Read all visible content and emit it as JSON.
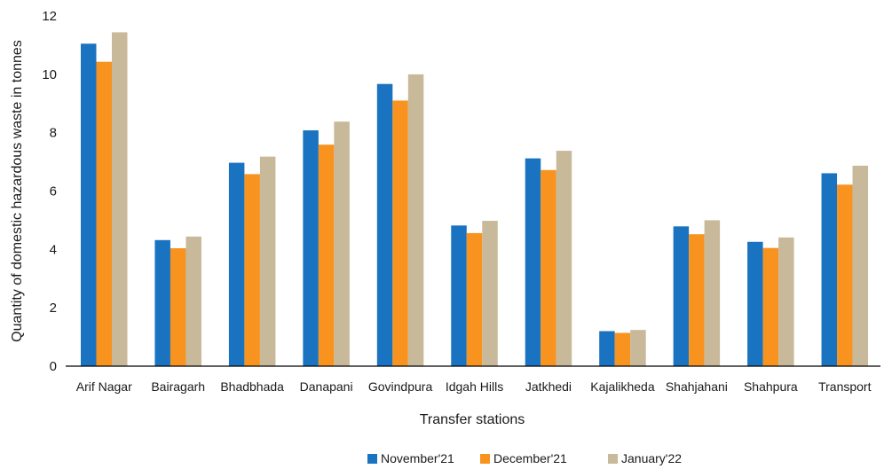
{
  "chart_data": {
    "type": "bar",
    "xlabel": "Transfer stations",
    "ylabel": "Quantity of domestic hazardous waste in tonnes",
    "ylim": [
      0,
      12
    ],
    "yticks": [
      0,
      2,
      4,
      6,
      8,
      10,
      12
    ],
    "grid": false,
    "legend_position": "bottom",
    "categories": [
      "Arif Nagar",
      "Bairagarh",
      "Bhadbhada",
      "Danapani",
      "Govindpura",
      "Idgah Hills",
      "Jatkhedi",
      "Kajalikheda",
      "Shahjahani",
      "Shahpura",
      "Transport"
    ],
    "series": [
      {
        "name": "November'21",
        "color": "#1a73c0",
        "values": [
          11.05,
          4.32,
          6.97,
          8.08,
          9.67,
          4.82,
          7.12,
          1.2,
          4.79,
          4.26,
          6.61
        ]
      },
      {
        "name": "December'21",
        "color": "#f7931e",
        "values": [
          10.43,
          4.04,
          6.58,
          7.59,
          9.1,
          4.56,
          6.72,
          1.14,
          4.52,
          4.05,
          6.22
        ]
      },
      {
        "name": "January'22",
        "color": "#c8b99a",
        "values": [
          11.44,
          4.44,
          7.18,
          8.38,
          10.0,
          4.98,
          7.38,
          1.24,
          5.0,
          4.41,
          6.87
        ]
      }
    ]
  }
}
